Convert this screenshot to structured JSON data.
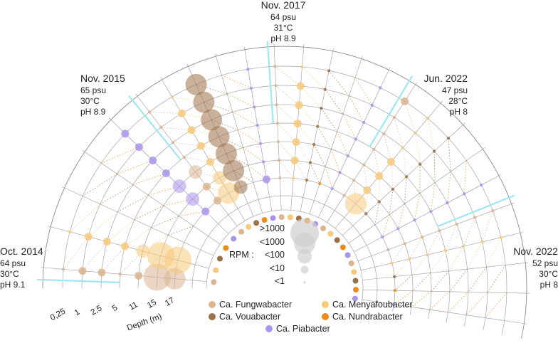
{
  "chart_data": {
    "type": "scatter",
    "subtype": "radial bubble chart",
    "title": "",
    "depth_axis": {
      "label": "Depth (m)",
      "ticks": [
        "0,25",
        "1",
        "2,5",
        "5",
        "11",
        "15",
        "17"
      ]
    },
    "size_legend": {
      "label": "RPM :",
      "levels": [
        ">1000",
        "<1000",
        "<100",
        "<10",
        "<1"
      ]
    },
    "taxa": [
      {
        "name": "Ca. Fungwabacter",
        "color": "#d9b48f"
      },
      {
        "name": "Ca. Menyafoubacter",
        "color": "#f7c97a"
      },
      {
        "name": "Ca. Vouabacter",
        "color": "#9c7148"
      },
      {
        "name": "Ca. Nundrabacter",
        "color": "#ee8c1a"
      },
      {
        "name": "Ca. Piabacter",
        "color": "#a994ec"
      }
    ],
    "samples": [
      {
        "date": "Oct. 2014",
        "salinity": "64 psu",
        "temperature": "30°C",
        "ph": "pH 9.1",
        "rpm_levels": {
          "Ca. Fungwabacter": [
            1,
            2,
            2,
            1,
            2,
            5,
            4
          ],
          "Ca. Menyafoubacter": [
            1,
            2,
            2,
            2,
            3,
            5,
            5
          ],
          "Ca. Vouabacter": [
            0,
            0,
            0,
            0,
            0,
            0,
            0
          ],
          "Ca. Nundrabacter": [
            0,
            0,
            0,
            0,
            0,
            0,
            0
          ],
          "Ca. Piabacter": [
            2,
            2,
            2,
            2,
            3,
            3,
            2
          ]
        }
      },
      {
        "date": "Nov. 2015",
        "salinity": "65 psu",
        "temperature": "30°C",
        "ph": "pH 8.9",
        "rpm_levels": {
          "Ca. Fungwabacter": [
            1,
            1,
            1,
            1,
            3,
            2,
            2
          ],
          "Ca. Menyafoubacter": [
            1,
            2,
            2,
            2,
            2,
            3,
            4
          ],
          "Ca. Vouabacter": [
            4,
            4,
            4,
            4,
            4,
            4,
            3
          ],
          "Ca. Nundrabacter": [
            0,
            0,
            0,
            0,
            0,
            0,
            0
          ],
          "Ca. Piabacter": [
            1,
            1,
            1,
            1,
            1,
            1,
            2
          ]
        }
      },
      {
        "date": "Nov. 2017",
        "salinity": "64 psu",
        "temperature": "31°C",
        "ph": "pH 8.9",
        "rpm_levels": {
          "Ca. Fungwabacter": [
            1,
            1,
            1,
            1,
            1,
            1,
            1
          ],
          "Ca. Menyafoubacter": [
            1,
            2,
            2,
            2,
            2,
            2,
            1
          ],
          "Ca. Vouabacter": [
            1,
            1,
            1,
            1,
            1,
            1,
            1
          ],
          "Ca. Nundrabacter": [
            0,
            0,
            0,
            0,
            0,
            0,
            1
          ],
          "Ca. Piabacter": [
            1,
            1,
            1,
            1,
            1,
            1,
            1
          ]
        }
      },
      {
        "date": "Jun. 2022",
        "salinity": "47 psu",
        "temperature": "28°C",
        "ph": "pH 8",
        "rpm_levels": {
          "Ca. Fungwabacter": [
            2,
            1,
            1,
            1,
            1,
            1,
            1
          ],
          "Ca. Menyafoubacter": [
            1,
            1,
            1,
            2,
            2,
            2,
            4
          ],
          "Ca. Vouabacter": [
            1,
            1,
            1,
            1,
            1,
            1,
            1
          ],
          "Ca. Nundrabacter": [
            0,
            0,
            0,
            0,
            0,
            0,
            0
          ],
          "Ca. Piabacter": [
            1,
            1,
            1,
            1,
            1,
            1,
            1
          ]
        }
      },
      {
        "date": "Nov. 2022",
        "salinity": "52 psu",
        "temperature": "30°C",
        "ph": "pH 8",
        "rpm_levels": {
          "Ca. Fungwabacter": [
            1,
            1,
            1,
            1,
            1,
            1,
            1
          ],
          "Ca. Menyafoubacter": [
            1,
            1,
            1,
            1,
            1,
            1,
            1
          ],
          "Ca. Vouabacter": [
            0,
            0,
            0,
            0,
            0,
            0,
            1
          ],
          "Ca. Nundrabacter": [
            0,
            0,
            0,
            0,
            0,
            0,
            1
          ],
          "Ca. Piabacter": [
            0,
            0,
            0,
            0,
            0,
            0,
            1
          ]
        }
      }
    ]
  }
}
